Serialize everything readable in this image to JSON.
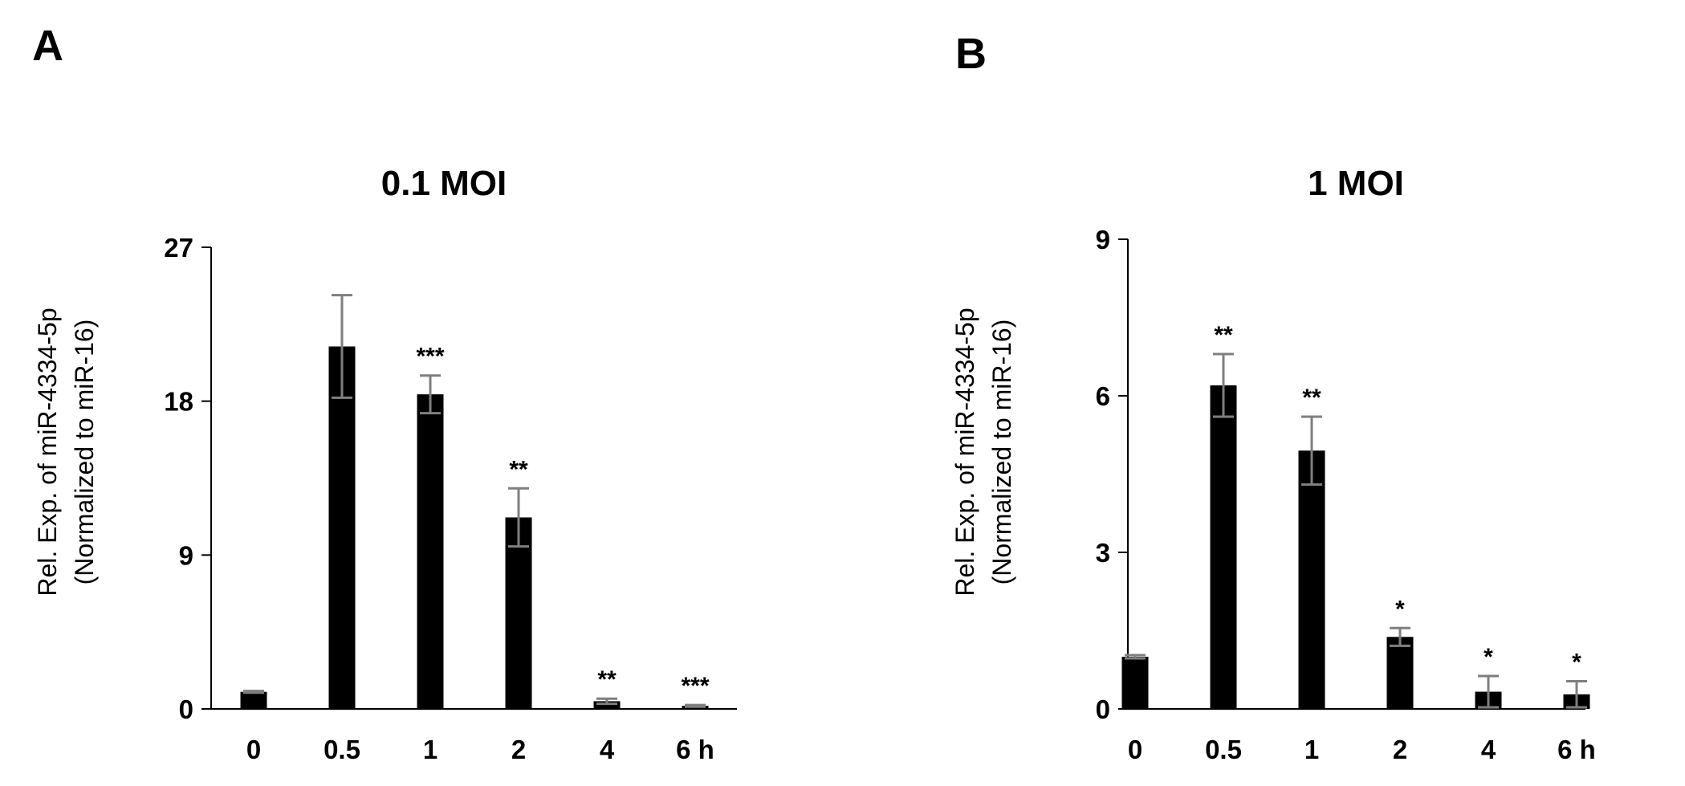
{
  "panels": [
    {
      "letter": "A",
      "chart_data": {
        "type": "bar",
        "title": "0.1 MOI",
        "ylabel": [
          "Rel. Exp. of miR-4334-5p",
          "(Normalized to miR-16)"
        ],
        "xlabel": "",
        "categories": [
          "0",
          "0.5",
          "1",
          "2",
          "4",
          "6 h"
        ],
        "values": [
          1.0,
          21.2,
          18.4,
          11.2,
          0.45,
          0.18
        ],
        "errors": [
          0.05,
          3.0,
          1.1,
          1.7,
          0.15,
          0.05
        ],
        "significance": [
          "",
          "",
          "***",
          "**",
          "**",
          "***"
        ],
        "ylim": [
          0,
          27
        ],
        "yticks": [
          0,
          9,
          18,
          27
        ],
        "ytick_labels": [
          "0",
          "9",
          "18",
          "27"
        ],
        "grid": false,
        "legend": "none",
        "bar_color": "#000000",
        "error_color": "#7f7f7f"
      }
    },
    {
      "letter": "B",
      "chart_data": {
        "type": "bar",
        "title": "1 MOI",
        "ylabel": [
          "Rel. Exp. of miR-4334-5p",
          "(Normalized to miR-16)"
        ],
        "xlabel": "",
        "categories": [
          "0",
          "0.5",
          "1",
          "2",
          "4",
          "6 h"
        ],
        "values": [
          1.0,
          6.2,
          4.95,
          1.38,
          0.33,
          0.28
        ],
        "errors": [
          0.03,
          0.6,
          0.65,
          0.17,
          0.3,
          0.25
        ],
        "significance": [
          "",
          "**",
          "**",
          "*",
          "*",
          "*"
        ],
        "ylim": [
          0,
          9
        ],
        "yticks": [
          0,
          3,
          6,
          9
        ],
        "ytick_labels": [
          "0",
          "3",
          "6",
          "9"
        ],
        "grid": false,
        "legend": "none",
        "bar_color": "#000000",
        "error_color": "#7f7f7f"
      }
    }
  ]
}
